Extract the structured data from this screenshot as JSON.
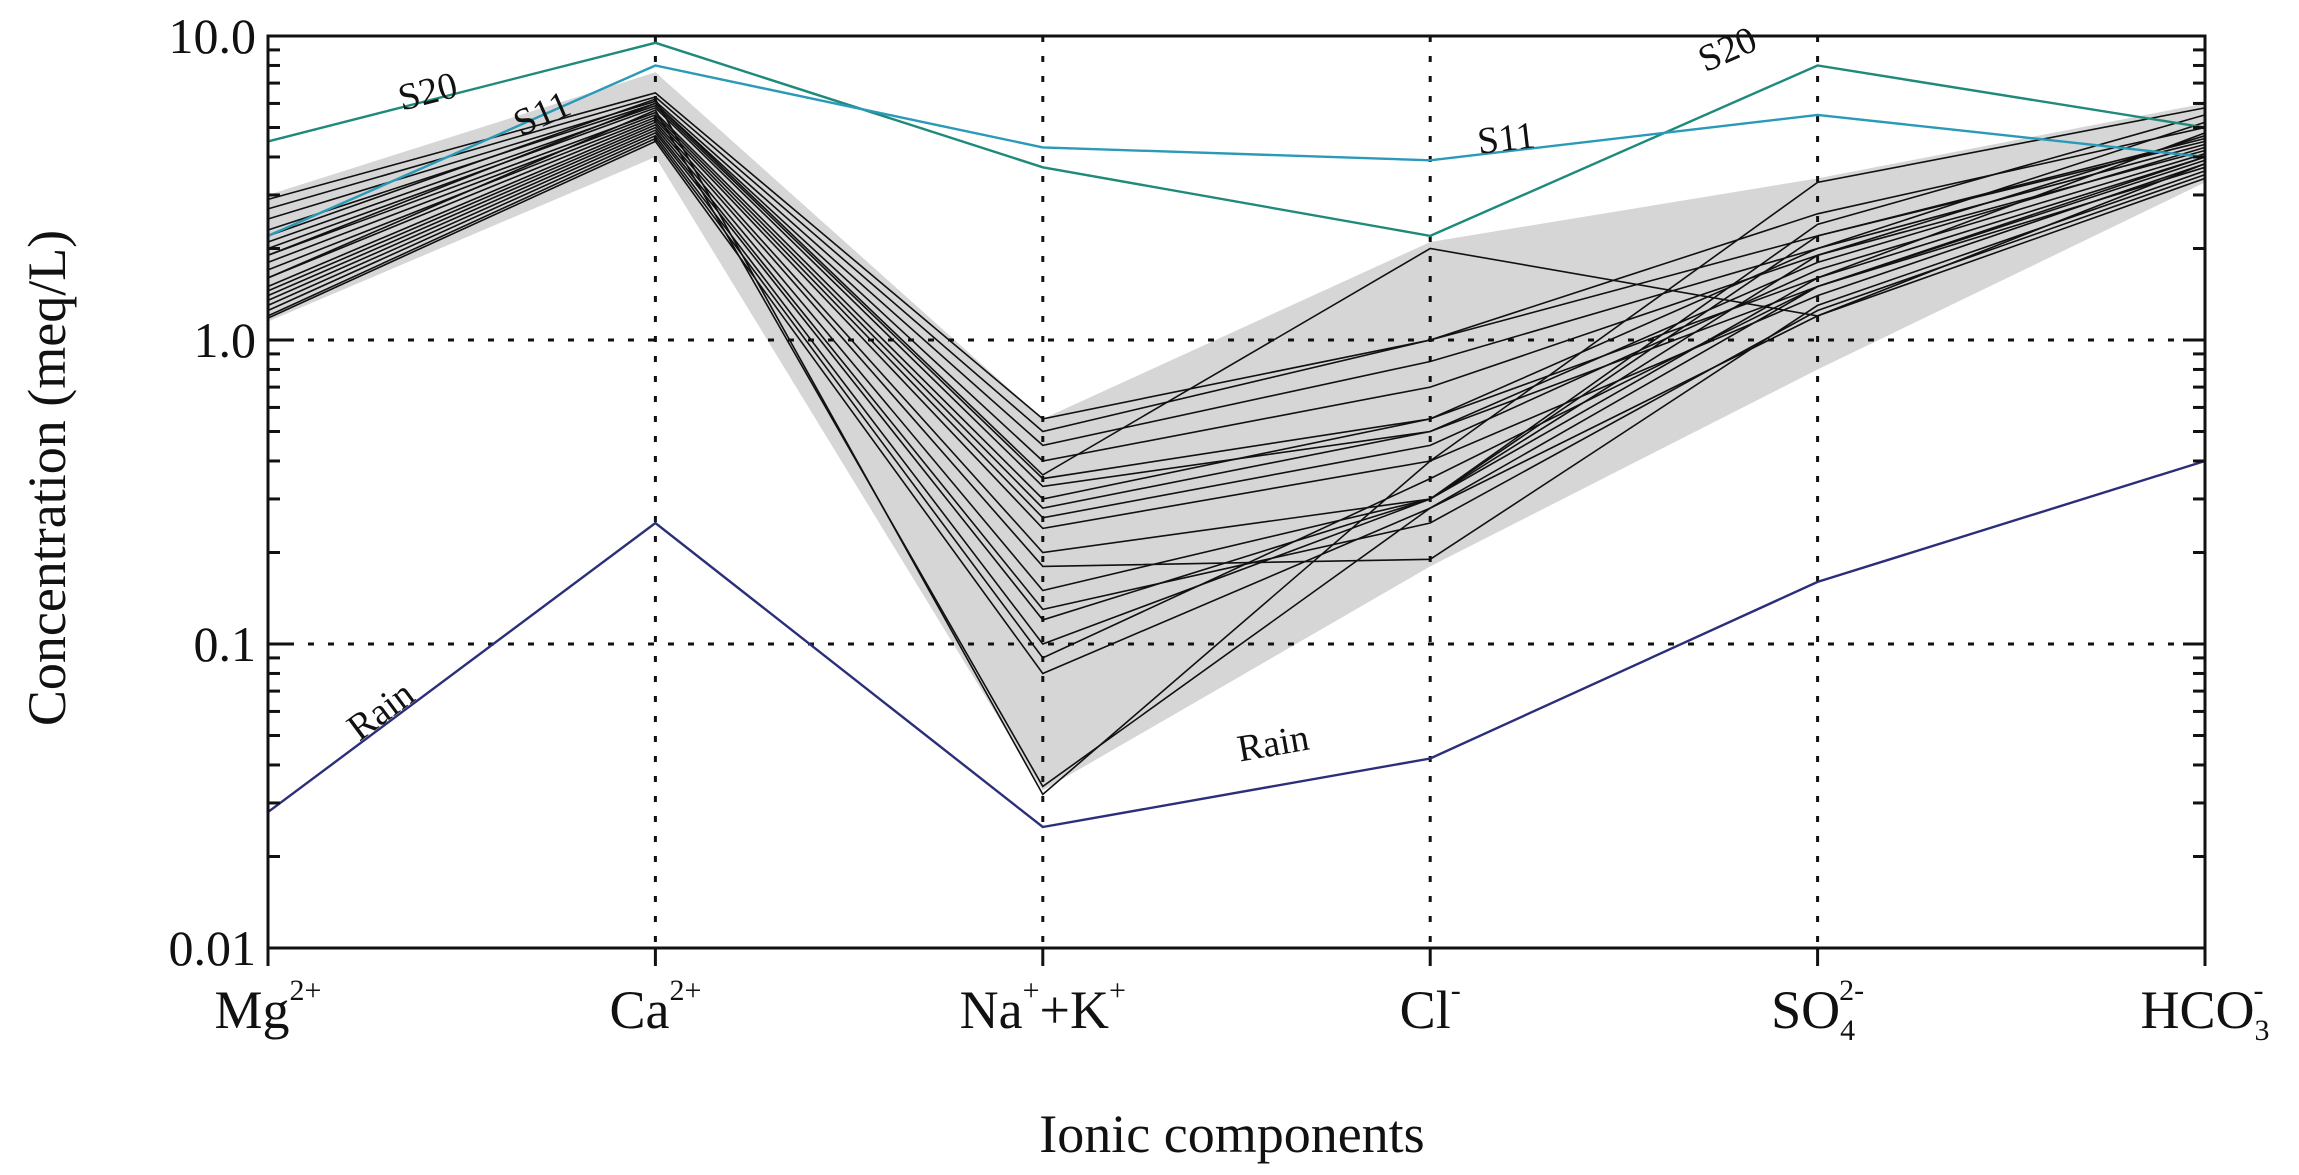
{
  "chart_data": {
    "type": "line",
    "title": "",
    "xlabel": "Ionic components",
    "ylabel": "Concentration (meq/L)",
    "yscale": "log",
    "ylim": [
      0.01,
      10
    ],
    "yticks": [
      "0.01",
      "0.1",
      "1.0",
      "10.0"
    ],
    "grid": "dotted",
    "categories": [
      {
        "base": "Mg",
        "sup": "2+",
        "post": ""
      },
      {
        "base": "Ca",
        "sup": "2+",
        "post": ""
      },
      {
        "base": "Na",
        "sup": "+",
        "post": "+K",
        "sup2": "+"
      },
      {
        "base": "Cl",
        "sup": "-",
        "post": ""
      },
      {
        "base": "SO",
        "sub": "4",
        "sup": "2-",
        "post": ""
      },
      {
        "base": "HCO",
        "sub": "3",
        "sup": "-",
        "post": ""
      }
    ],
    "colors": {
      "samples": "#111111",
      "shade": "#d6d6d6",
      "S20": "#1f8a7a",
      "S11": "#2a9ab8",
      "Rain": "#2b2f7a"
    },
    "range_band": {
      "max": [
        3.0,
        7.6,
        0.55,
        2.1,
        3.4,
        6.0
      ],
      "min": [
        1.15,
        4.0,
        0.033,
        0.18,
        0.8,
        3.3
      ]
    },
    "samples": [
      [
        2.9,
        6.5,
        0.55,
        1.0,
        2.6,
        5.0
      ],
      [
        2.7,
        6.3,
        0.5,
        1.0,
        2.2,
        4.6
      ],
      [
        2.5,
        6.1,
        0.45,
        0.85,
        2.0,
        4.4
      ],
      [
        2.3,
        6.0,
        0.4,
        0.7,
        1.9,
        4.7
      ],
      [
        2.1,
        5.9,
        0.35,
        0.55,
        2.0,
        5.2
      ],
      [
        2.0,
        5.8,
        0.33,
        0.5,
        1.8,
        4.3
      ],
      [
        1.9,
        5.6,
        0.3,
        0.55,
        1.6,
        4.0
      ],
      [
        1.8,
        5.5,
        0.28,
        0.5,
        1.5,
        3.9
      ],
      [
        1.7,
        5.4,
        0.26,
        0.45,
        1.7,
        4.1
      ],
      [
        1.6,
        5.3,
        0.24,
        0.4,
        1.4,
        3.8
      ],
      [
        1.5,
        5.2,
        0.2,
        0.3,
        2.2,
        4.5
      ],
      [
        1.45,
        5.1,
        0.18,
        0.19,
        1.3,
        3.6
      ],
      [
        1.4,
        5.0,
        0.15,
        0.3,
        1.6,
        4.8
      ],
      [
        1.35,
        4.9,
        0.13,
        0.25,
        1.25,
        3.5
      ],
      [
        1.3,
        4.8,
        0.12,
        0.3,
        2.4,
        5.5
      ],
      [
        1.25,
        4.7,
        0.1,
        0.3,
        1.9,
        4.2
      ],
      [
        1.2,
        4.6,
        0.09,
        0.35,
        1.5,
        3.7
      ],
      [
        1.18,
        4.5,
        0.08,
        0.28,
        1.2,
        3.4
      ],
      [
        1.9,
        6.0,
        0.36,
        2.0,
        1.2,
        3.8
      ],
      [
        2.2,
        6.2,
        0.032,
        0.4,
        3.3,
        5.8
      ],
      [
        1.6,
        5.7,
        0.034,
        0.28,
        1.5,
        4.0
      ]
    ],
    "series": [
      {
        "name": "S20",
        "values": [
          4.5,
          9.5,
          3.7,
          2.2,
          8.0,
          5.0
        ],
        "label_points": [
          {
            "x": 0.42,
            "y": 6.0
          },
          {
            "x": 3.78,
            "y": 8.3
          }
        ]
      },
      {
        "name": "S11",
        "values": [
          2.2,
          8.0,
          4.3,
          3.9,
          5.5,
          4.0
        ],
        "label_points": [
          {
            "x": 0.72,
            "y": 5.1
          },
          {
            "x": 3.2,
            "y": 4.2
          }
        ]
      },
      {
        "name": "Rain",
        "values": [
          0.028,
          0.25,
          0.025,
          0.042,
          0.16,
          0.4
        ],
        "label_points": [
          {
            "x": 0.31,
            "y": 0.056
          },
          {
            "x": 2.6,
            "y": 0.043
          }
        ]
      }
    ]
  }
}
